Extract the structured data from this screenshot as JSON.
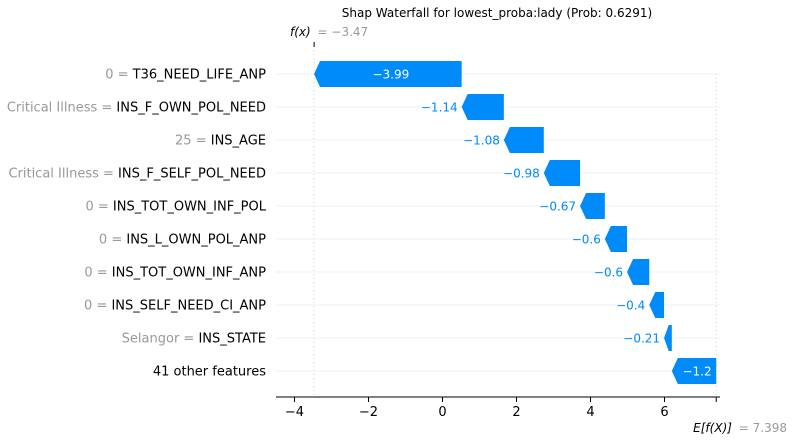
{
  "chart_data": {
    "type": "waterfall",
    "title": "Shap Waterfall for lowest_proba:lady (Prob: 0.6291)",
    "fx_label": "f(x)",
    "fx_value": "= −3.47",
    "efx_label": "E[f(X)]",
    "efx_value": "= 7.398",
    "fx": -3.47,
    "base_value": 7.398,
    "xlim": [
      -4.5,
      7.5
    ],
    "xticks": [
      -4,
      -2,
      0,
      2,
      4,
      6
    ],
    "xtick_labels": [
      "−4",
      "−2",
      "0",
      "2",
      "4",
      "6"
    ],
    "colors": {
      "negative": "#008bfb",
      "positive": "#ff0051"
    },
    "features": [
      {
        "value_label": "0",
        "name": "T36_NEED_LIFE_ANP",
        "shap": -3.99,
        "label": "−3.99"
      },
      {
        "value_label": "Critical Illness",
        "name": "INS_F_OWN_POL_NEED",
        "shap": -1.14,
        "label": "−1.14"
      },
      {
        "value_label": "25",
        "name": "INS_AGE",
        "shap": -1.08,
        "label": "−1.08"
      },
      {
        "value_label": "Critical Illness",
        "name": "INS_F_SELF_POL_NEED",
        "shap": -0.98,
        "label": "−0.98"
      },
      {
        "value_label": "0",
        "name": "INS_TOT_OWN_INF_POL",
        "shap": -0.67,
        "label": "−0.67"
      },
      {
        "value_label": "0",
        "name": "INS_L_OWN_POL_ANP",
        "shap": -0.6,
        "label": "−0.6"
      },
      {
        "value_label": "0",
        "name": "INS_TOT_OWN_INF_ANP",
        "shap": -0.6,
        "label": "−0.6"
      },
      {
        "value_label": "0",
        "name": "INS_SELF_NEED_CI_ANP",
        "shap": -0.4,
        "label": "−0.4"
      },
      {
        "value_label": "Selangor",
        "name": "INS_STATE",
        "shap": -0.21,
        "label": "−0.21"
      },
      {
        "value_label": "",
        "name": "41 other features",
        "shap": -1.2,
        "label": "−1.2"
      }
    ]
  }
}
